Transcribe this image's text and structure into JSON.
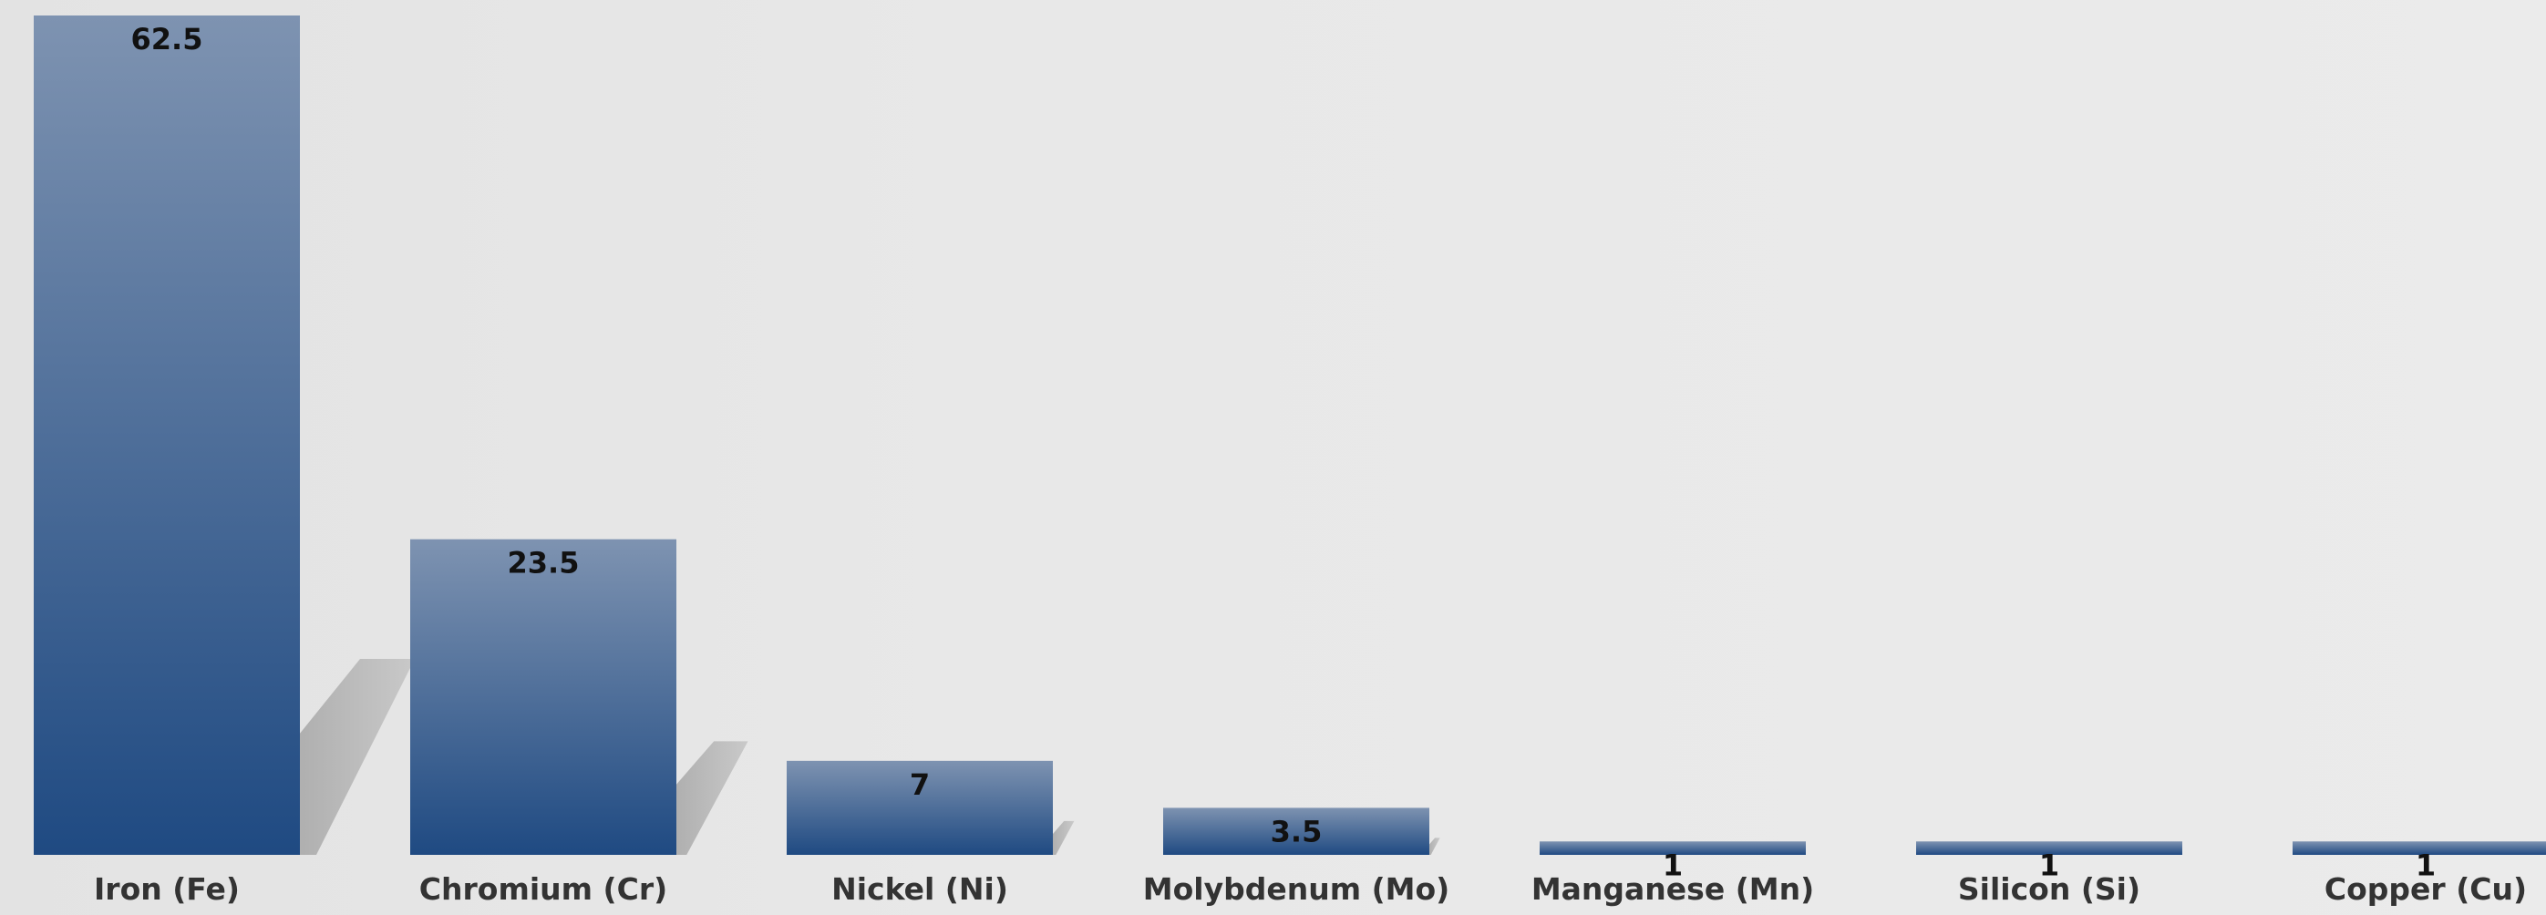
{
  "chart_data": {
    "type": "bar",
    "categories": [
      "Iron (Fe)",
      "Chromium (Cr)",
      "Nickel (Ni)",
      "Molybdenum (Mo)",
      "Manganese (Mn)",
      "Silicon (Si)",
      "Copper (Cu)"
    ],
    "values": [
      62.5,
      23.5,
      7,
      3.5,
      1,
      1,
      1
    ],
    "data_labels": [
      "62.5",
      "23.5",
      "7",
      "3.5",
      "1",
      "1",
      "1"
    ],
    "title": "",
    "xlabel": "",
    "ylabel": "",
    "ylim": [
      0,
      62.5
    ],
    "grid": false,
    "legend": "none",
    "colors": {
      "bar_top": "#7e93b1",
      "bar_bottom": "#1f4a82",
      "shadow": "#b4b4b4",
      "label_text": "#111111",
      "category_text": "#333333"
    }
  }
}
